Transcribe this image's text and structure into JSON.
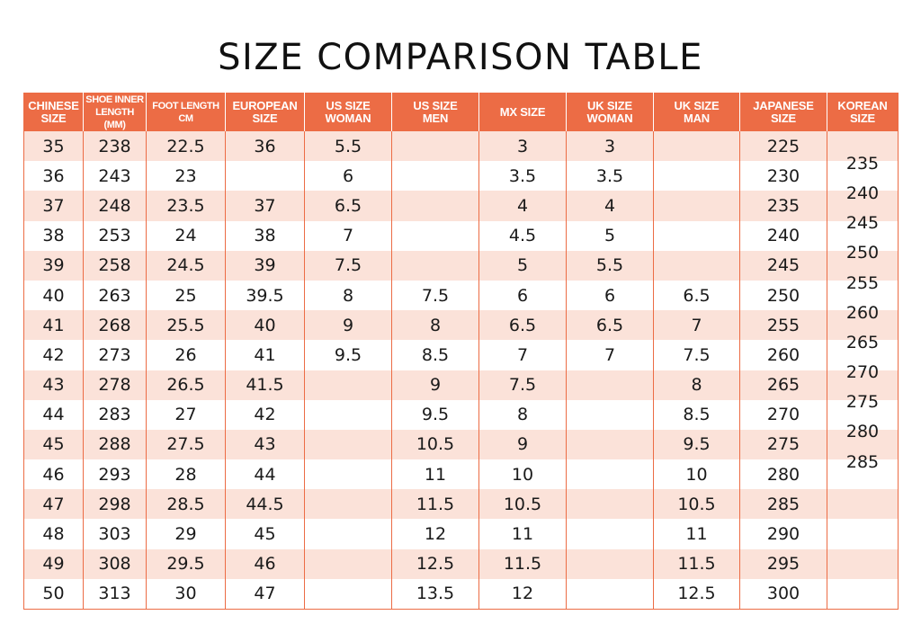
{
  "title": "SIZE COMPARISON TABLE",
  "colors": {
    "header_bg": "#ec6c45",
    "header_text": "#ffffff",
    "stripe": "#fbe2d9",
    "border": "#ec6c45"
  },
  "columns": [
    "CHINESE\nSIZE",
    "SHOE INNER\nLENGTH (MM)",
    "FOOT LENGTH\nCM",
    "EUROPEAN\nSIZE",
    "US SIZE\nWOMAN",
    "US SIZE\nMEN",
    "MX SIZE",
    "UK SIZE\nWOMAN",
    "UK SIZE\nMAN",
    "JAPANESE\nSIZE",
    "KOREAN\nSIZE"
  ],
  "rows": [
    [
      "35",
      "238",
      "22.5",
      "36",
      "5.5",
      "",
      "3",
      "3",
      "",
      "225",
      ""
    ],
    [
      "36",
      "243",
      "23",
      "",
      "6",
      "",
      "3.5",
      "3.5",
      "",
      "230",
      "235"
    ],
    [
      "37",
      "248",
      "23.5",
      "37",
      "6.5",
      "",
      "4",
      "4",
      "",
      "235",
      "240"
    ],
    [
      "38",
      "253",
      "24",
      "38",
      "7",
      "",
      "4.5",
      "5",
      "",
      "240",
      "245"
    ],
    [
      "39",
      "258",
      "24.5",
      "39",
      "7.5",
      "",
      "5",
      "5.5",
      "",
      "245",
      "250"
    ],
    [
      "40",
      "263",
      "25",
      "39.5",
      "8",
      "7.5",
      "6",
      "6",
      "6.5",
      "250",
      "255"
    ],
    [
      "41",
      "268",
      "25.5",
      "40",
      "9",
      "8",
      "6.5",
      "6.5",
      "7",
      "255",
      "260"
    ],
    [
      "42",
      "273",
      "26",
      "41",
      "9.5",
      "8.5",
      "7",
      "7",
      "7.5",
      "260",
      "265"
    ],
    [
      "43",
      "278",
      "26.5",
      "41.5",
      "",
      "9",
      "7.5",
      "",
      "8",
      "265",
      "270"
    ],
    [
      "44",
      "283",
      "27",
      "42",
      "",
      "9.5",
      "8",
      "",
      "8.5",
      "270",
      "275"
    ],
    [
      "45",
      "288",
      "27.5",
      "43",
      "",
      "10.5",
      "9",
      "",
      "9.5",
      "275",
      "280"
    ],
    [
      "46",
      "293",
      "28",
      "44",
      "",
      "11",
      "10",
      "",
      "10",
      "280",
      "285"
    ],
    [
      "47",
      "298",
      "28.5",
      "44.5",
      "",
      "11.5",
      "10.5",
      "",
      "10.5",
      "285",
      ""
    ],
    [
      "48",
      "303",
      "29",
      "45",
      "",
      "12",
      "11",
      "",
      "11",
      "290",
      ""
    ],
    [
      "49",
      "308",
      "29.5",
      "46",
      "",
      "12.5",
      "11.5",
      "",
      "11.5",
      "295",
      ""
    ],
    [
      "50",
      "313",
      "30",
      "47",
      "",
      "13.5",
      "12",
      "",
      "12.5",
      "300",
      ""
    ]
  ]
}
